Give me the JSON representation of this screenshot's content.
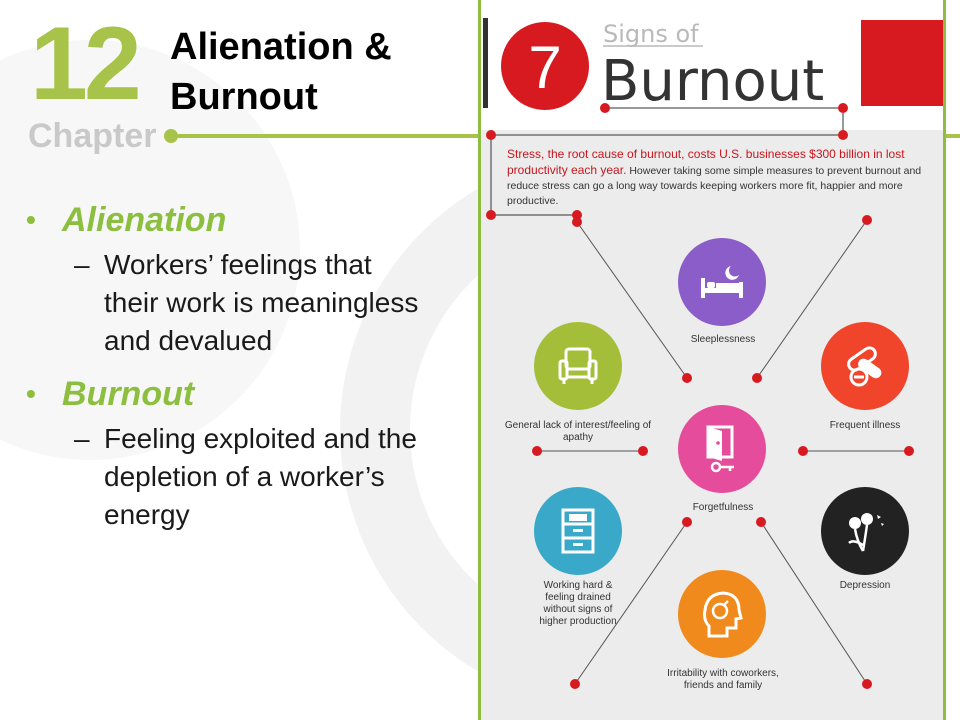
{
  "slide": {
    "chapter_number": "12",
    "chapter_word": "Chapter",
    "title_line1": "Alienation &",
    "title_line2": "Burnout",
    "bullets": [
      {
        "term": "Alienation",
        "desc_lines": [
          "Workers’ feelings that",
          "their work is meaningless",
          "and devalued"
        ]
      },
      {
        "term": "Burnout",
        "desc_lines": [
          "Feeling exploited and the",
          "depletion of a worker’s",
          "energy"
        ]
      }
    ]
  },
  "infographic": {
    "number": "7",
    "heading_small": "Signs of",
    "heading_big": "Burnout",
    "intro_lead": "Stress, the root cause of burnout, costs U.S. businesses $300 billion in lost productivity each year.",
    "intro_rest": "However taking some simple measures to prevent burnout and reduce stress can go a long way towards keeping workers more fit, happier and more productive.",
    "signs": [
      {
        "id": "sleeplessness",
        "label": "Sleeplessness",
        "color": "#8b5dc8",
        "icon": "bed-icon"
      },
      {
        "id": "apathy",
        "label": "General lack of interest/feeling of apathy",
        "color": "#a5be3a",
        "icon": "armchair-icon"
      },
      {
        "id": "illness",
        "label": "Frequent illness",
        "color": "#f0442b",
        "icon": "pills-icon"
      },
      {
        "id": "forgetfulness",
        "label": "Forgetfulness",
        "color": "#e64c9c",
        "icon": "door-key-icon"
      },
      {
        "id": "drained",
        "label": "Working hard & feeling drained without signs of higher production",
        "color": "#3aa9c9",
        "icon": "file-cabinet-icon"
      },
      {
        "id": "depression",
        "label": "Depression",
        "color": "#222222",
        "icon": "wilted-flower-icon"
      },
      {
        "id": "irritability",
        "label": "Irritability with coworkers, friends and family",
        "color": "#f08a1c",
        "icon": "head-bomb-icon"
      }
    ],
    "colors": {
      "accent_red": "#d71920",
      "border_green": "#8cbf3f"
    }
  }
}
